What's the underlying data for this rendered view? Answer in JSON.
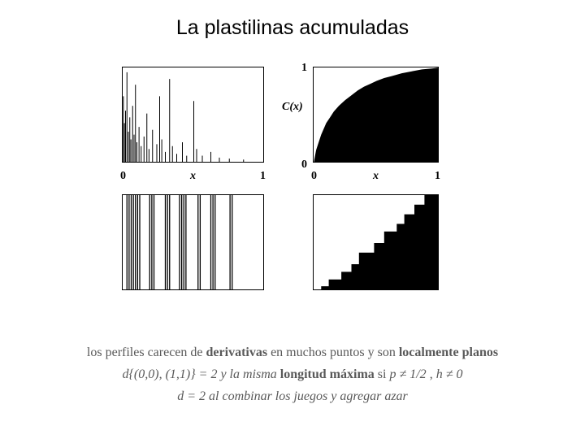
{
  "title": "La plastilinas acumuladas",
  "panels": {
    "top_left": {
      "type": "spikes",
      "width": 175,
      "height": 118,
      "border_color": "#000000",
      "background_color": "#ffffff",
      "x_axis": {
        "min_label": "0",
        "max_label": "1",
        "var_label": "x"
      },
      "spikes": [
        {
          "x": 0.005,
          "h": 0.7
        },
        {
          "x": 0.012,
          "h": 0.42
        },
        {
          "x": 0.02,
          "h": 0.55
        },
        {
          "x": 0.03,
          "h": 0.95
        },
        {
          "x": 0.04,
          "h": 0.33
        },
        {
          "x": 0.05,
          "h": 0.48
        },
        {
          "x": 0.058,
          "h": 0.25
        },
        {
          "x": 0.07,
          "h": 0.6
        },
        {
          "x": 0.08,
          "h": 0.3
        },
        {
          "x": 0.09,
          "h": 0.82
        },
        {
          "x": 0.1,
          "h": 0.22
        },
        {
          "x": 0.115,
          "h": 0.38
        },
        {
          "x": 0.13,
          "h": 0.18
        },
        {
          "x": 0.15,
          "h": 0.28
        },
        {
          "x": 0.17,
          "h": 0.52
        },
        {
          "x": 0.185,
          "h": 0.15
        },
        {
          "x": 0.21,
          "h": 0.35
        },
        {
          "x": 0.24,
          "h": 0.2
        },
        {
          "x": 0.26,
          "h": 0.7
        },
        {
          "x": 0.275,
          "h": 0.25
        },
        {
          "x": 0.3,
          "h": 0.12
        },
        {
          "x": 0.33,
          "h": 0.88
        },
        {
          "x": 0.35,
          "h": 0.18
        },
        {
          "x": 0.38,
          "h": 0.1
        },
        {
          "x": 0.42,
          "h": 0.22
        },
        {
          "x": 0.45,
          "h": 0.08
        },
        {
          "x": 0.5,
          "h": 0.65
        },
        {
          "x": 0.52,
          "h": 0.15
        },
        {
          "x": 0.56,
          "h": 0.08
        },
        {
          "x": 0.62,
          "h": 0.12
        },
        {
          "x": 0.68,
          "h": 0.06
        },
        {
          "x": 0.75,
          "h": 0.05
        },
        {
          "x": 0.85,
          "h": 0.04
        }
      ],
      "spike_color": "#000000"
    },
    "top_right": {
      "type": "cumulative",
      "width": 155,
      "height": 118,
      "border_color": "#000000",
      "background_color": "#ffffff",
      "fill_color": "#000000",
      "x_axis": {
        "min_label": "0",
        "max_label": "1",
        "var_label": "x"
      },
      "y_axis": {
        "min_label": "0",
        "max_label": "1",
        "title": "C(x)"
      },
      "curve": [
        [
          0.0,
          0.0
        ],
        [
          0.02,
          0.14
        ],
        [
          0.04,
          0.22
        ],
        [
          0.06,
          0.3
        ],
        [
          0.08,
          0.36
        ],
        [
          0.1,
          0.42
        ],
        [
          0.13,
          0.48
        ],
        [
          0.16,
          0.54
        ],
        [
          0.2,
          0.6
        ],
        [
          0.25,
          0.66
        ],
        [
          0.3,
          0.71
        ],
        [
          0.35,
          0.76
        ],
        [
          0.4,
          0.8
        ],
        [
          0.45,
          0.83
        ],
        [
          0.5,
          0.86
        ],
        [
          0.56,
          0.89
        ],
        [
          0.62,
          0.91
        ],
        [
          0.7,
          0.94
        ],
        [
          0.78,
          0.96
        ],
        [
          0.86,
          0.98
        ],
        [
          0.94,
          0.99
        ],
        [
          1.0,
          1.0
        ]
      ]
    },
    "bottom_left": {
      "type": "barcode",
      "width": 175,
      "height": 118,
      "border_color": "#000000",
      "background_color": "#ffffff",
      "line_color": "#000000",
      "clusters": [
        [
          0.03,
          0.045,
          0.06,
          0.075,
          0.09,
          0.105,
          0.12
        ],
        [
          0.19,
          0.205,
          0.22
        ],
        [
          0.3,
          0.315,
          0.33
        ],
        [
          0.4,
          0.415,
          0.43,
          0.445
        ],
        [
          0.53,
          0.545
        ],
        [
          0.62,
          0.635,
          0.65
        ],
        [
          0.755,
          0.77
        ]
      ]
    },
    "bottom_right": {
      "type": "staircase",
      "width": 155,
      "height": 118,
      "border_color": "#000000",
      "background_color": "#ffffff",
      "fill_color": "#000000",
      "steps": [
        [
          0.0,
          0.0
        ],
        [
          0.06,
          0.0
        ],
        [
          0.06,
          0.05
        ],
        [
          0.12,
          0.05
        ],
        [
          0.12,
          0.12
        ],
        [
          0.22,
          0.12
        ],
        [
          0.22,
          0.2
        ],
        [
          0.3,
          0.2
        ],
        [
          0.3,
          0.28
        ],
        [
          0.36,
          0.28
        ],
        [
          0.36,
          0.4
        ],
        [
          0.48,
          0.4
        ],
        [
          0.48,
          0.5
        ],
        [
          0.56,
          0.5
        ],
        [
          0.56,
          0.62
        ],
        [
          0.66,
          0.62
        ],
        [
          0.66,
          0.7
        ],
        [
          0.72,
          0.7
        ],
        [
          0.72,
          0.8
        ],
        [
          0.8,
          0.8
        ],
        [
          0.8,
          0.9
        ],
        [
          0.88,
          0.9
        ],
        [
          0.88,
          1.0
        ],
        [
          1.0,
          1.0
        ]
      ]
    }
  },
  "caption": {
    "line1_a": "los perfiles carecen de ",
    "line1_b": "derivativas",
    "line1_c": " en muchos puntos y son ",
    "line1_d": "localmente planos",
    "line2_a": "d{(0,0), (1,1)} = 2 y la misma ",
    "line2_b": "longitud máxima",
    "line2_c": " si ",
    "line2_d": "p ≠ 1/2",
    "line2_e": " , ",
    "line2_f": "h ≠ 0",
    "line3": "d = 2 al combinar los juegos y agregar azar"
  },
  "colors": {
    "background": "#ffffff",
    "text_title": "#000000",
    "text_caption": "#595959",
    "axis": "#000000"
  },
  "typography": {
    "title_fontsize": 25,
    "caption_fontsize": 16,
    "axis_fontsize": 14
  }
}
